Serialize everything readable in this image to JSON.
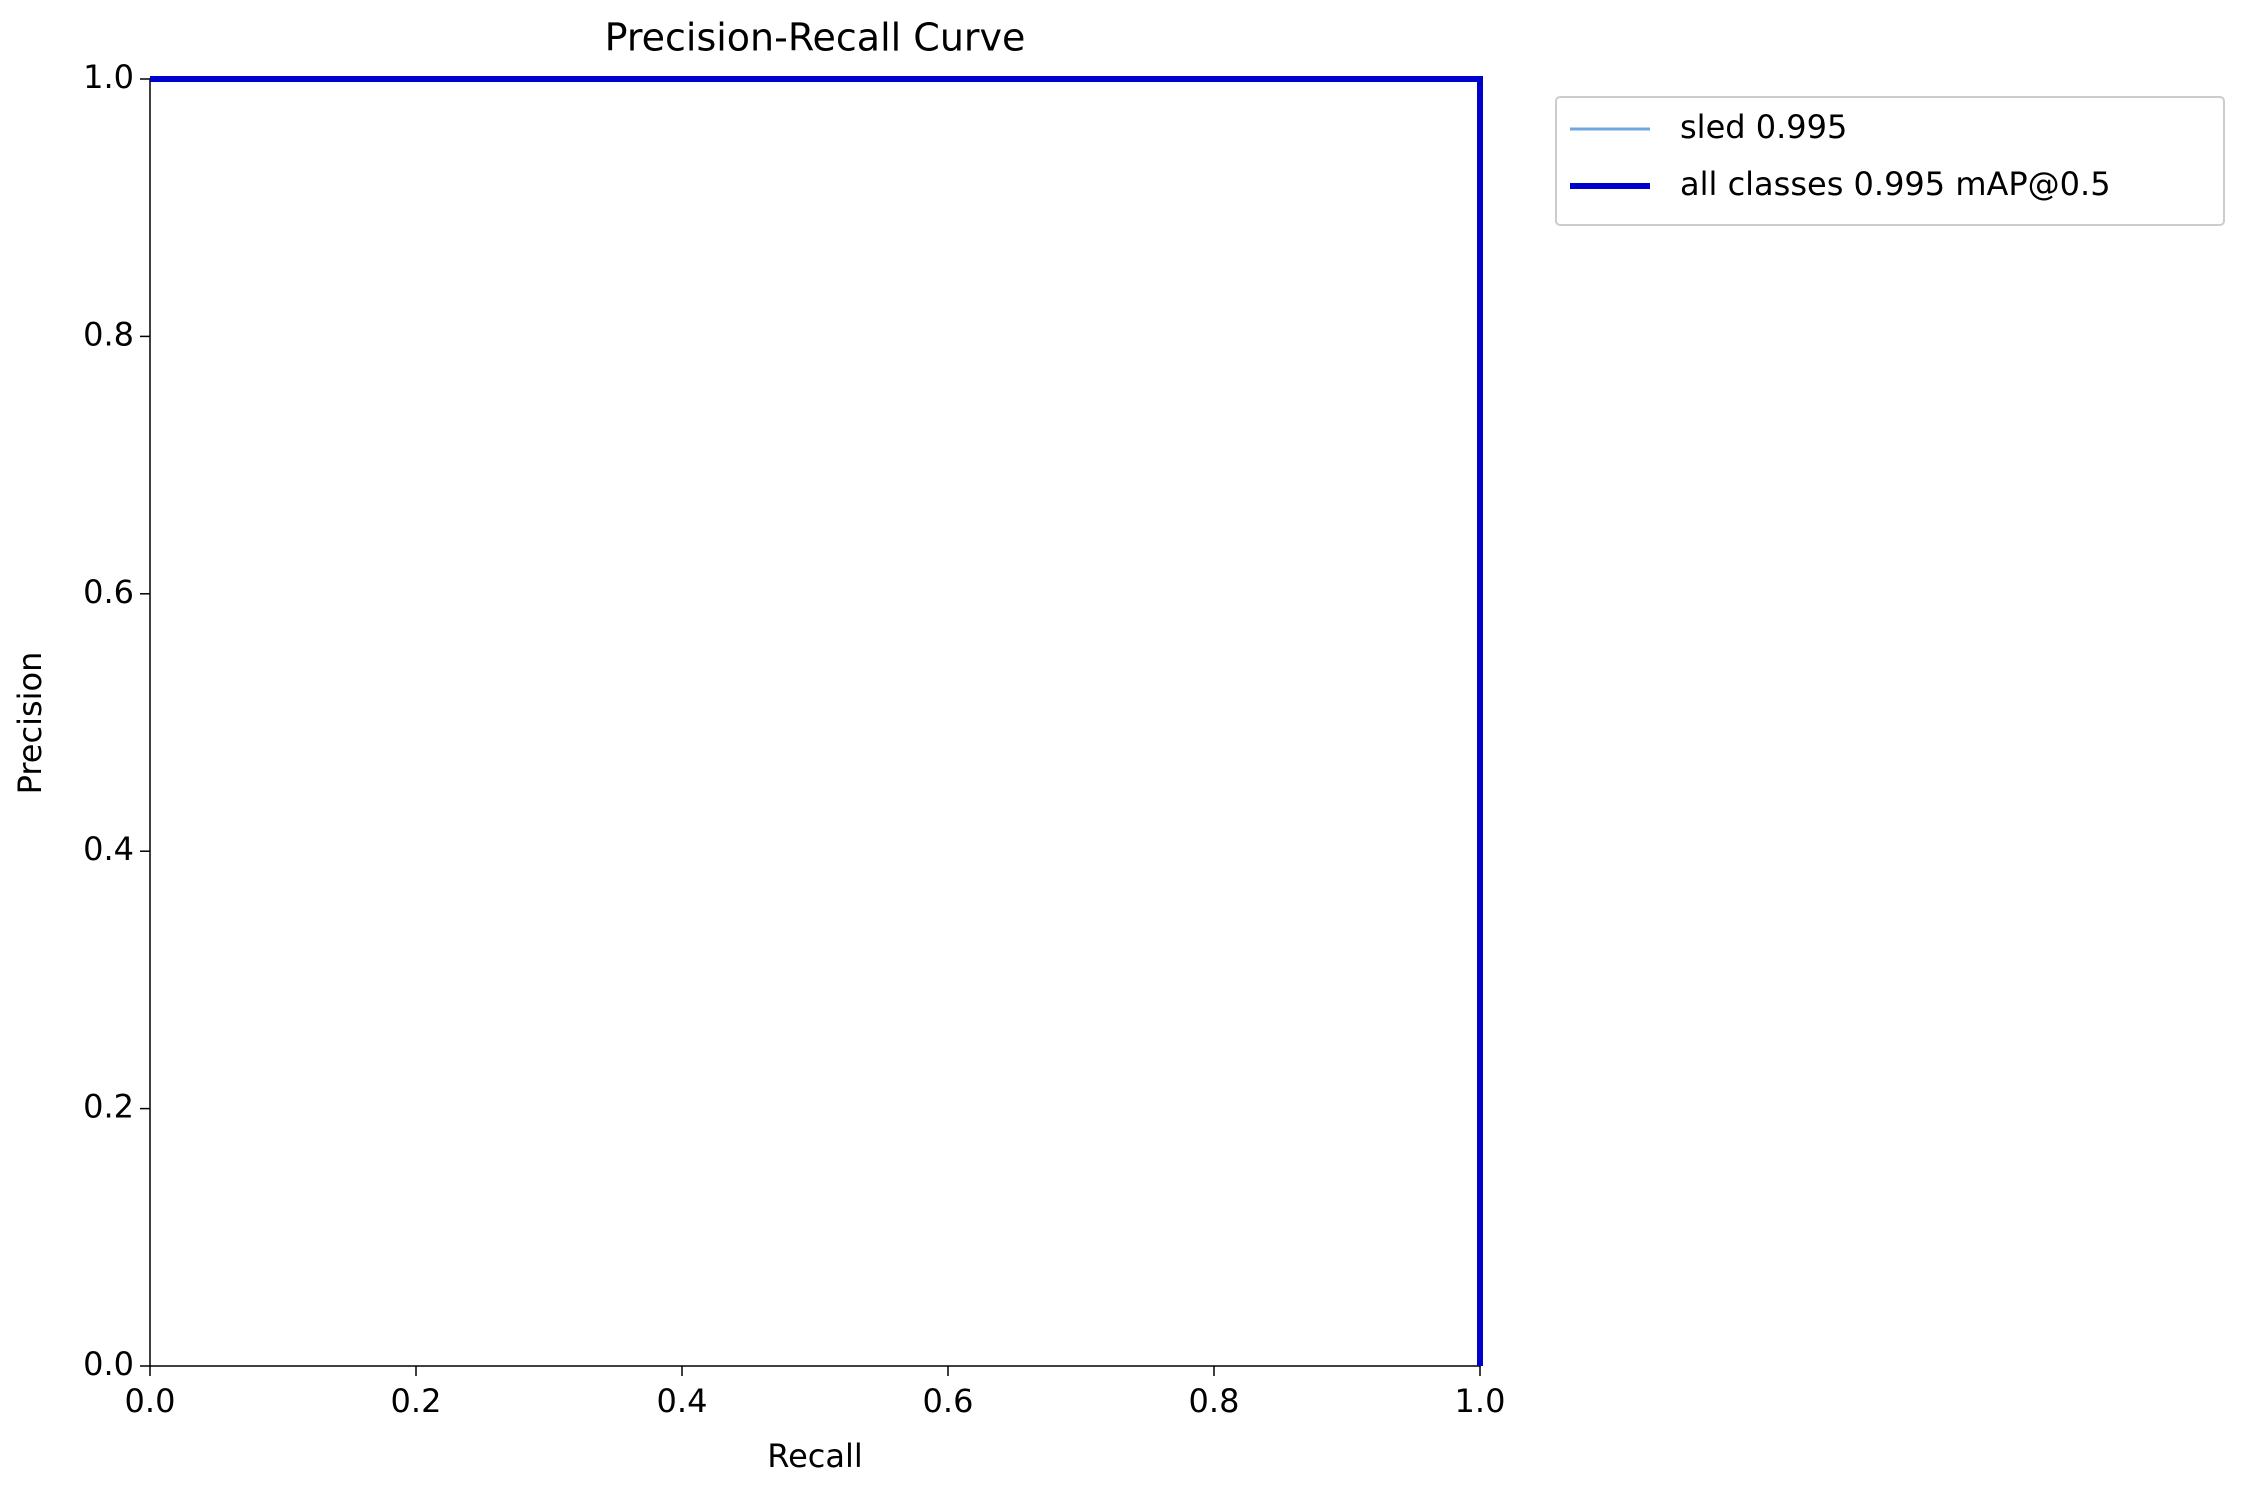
{
  "chart_data": {
    "type": "line",
    "title": "Precision-Recall Curve",
    "x_label": "Recall",
    "y_label": "Precision",
    "x": [
      0,
      1,
      1
    ],
    "series": [
      {
        "name": "sled 0.995",
        "color": "#6fa8dc",
        "values": [
          1,
          1,
          0
        ]
      },
      {
        "name": "all classes 0.995 mAP@0.5",
        "color": "#0000cd",
        "values": [
          1,
          1,
          0
        ]
      }
    ],
    "xlim": [
      0,
      1
    ],
    "ylim": [
      0,
      1
    ],
    "xticks": [
      {
        "value": 0,
        "label": "0.0"
      },
      0.2,
      0.4,
      0.6,
      0.8,
      {
        "value": 1,
        "label": "1.0"
      }
    ],
    "yticks": [
      {
        "value": 0,
        "label": "0.0"
      },
      0.2,
      0.4,
      0.6,
      0.8,
      {
        "value": 1,
        "label": "1.0"
      }
    ],
    "legend": "outside-upper-right",
    "grid": false
  }
}
